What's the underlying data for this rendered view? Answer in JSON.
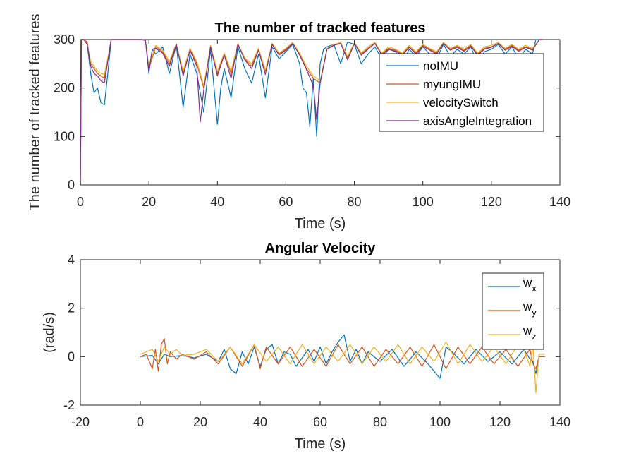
{
  "chart_data": [
    {
      "type": "line",
      "title": "The number of tracked features",
      "xlabel": "Time (s)",
      "ylabel": "The number of tracked features",
      "xlim": [
        0,
        140
      ],
      "ylim": [
        0,
        300
      ],
      "xticks": [
        "0",
        "20",
        "40",
        "60",
        "80",
        "100",
        "120",
        "140"
      ],
      "yticks": [
        "0",
        "100",
        "200",
        "300"
      ],
      "grid": false,
      "legend_position": "top-right",
      "series": [
        {
          "name": "noIMU",
          "color": "#0072BD",
          "x": [
            0,
            0.3,
            1,
            2,
            3,
            4,
            5,
            6,
            7,
            8,
            9,
            10,
            12,
            14,
            16,
            18,
            19,
            20,
            21,
            22,
            24,
            26,
            28,
            30,
            32,
            34,
            36,
            38,
            40,
            41,
            42,
            44,
            46,
            48,
            50,
            52,
            54,
            56,
            58,
            60,
            62,
            64,
            65,
            66,
            67,
            68,
            69,
            70,
            71,
            72,
            74,
            76,
            78,
            80,
            82,
            84,
            86,
            88,
            90,
            92,
            94,
            96,
            98,
            100,
            102,
            104,
            106,
            108,
            110,
            112,
            114,
            116,
            118,
            120,
            122,
            124,
            126,
            128,
            130,
            132,
            133,
            134,
            135
          ],
          "y": [
            0,
            300,
            300,
            290,
            230,
            190,
            200,
            170,
            165,
            230,
            300,
            300,
            300,
            300,
            300,
            300,
            298,
            230,
            280,
            270,
            285,
            230,
            290,
            160,
            270,
            230,
            150,
            280,
            125,
            200,
            240,
            180,
            285,
            240,
            210,
            270,
            180,
            285,
            260,
            275,
            290,
            250,
            200,
            190,
            120,
            220,
            100,
            250,
            280,
            285,
            290,
            250,
            295,
            290,
            250,
            270,
            285,
            260,
            280,
            275,
            250,
            280,
            265,
            285,
            270,
            260,
            290,
            265,
            280,
            270,
            285,
            250,
            275,
            280,
            290,
            270,
            285,
            260,
            280,
            270,
            300,
            300,
            300
          ]
        },
        {
          "name": "myungIMU",
          "color": "#D95319",
          "x": [
            0,
            0.3,
            1,
            2,
            3,
            4,
            5,
            6,
            7,
            8,
            9,
            10,
            14,
            18,
            19,
            20,
            22,
            24,
            26,
            28,
            30,
            32,
            34,
            36,
            38,
            40,
            42,
            44,
            46,
            48,
            50,
            52,
            54,
            56,
            58,
            60,
            62,
            64,
            66,
            68,
            70,
            72,
            74,
            76,
            78,
            80,
            82,
            84,
            86,
            88,
            90,
            92,
            94,
            96,
            98,
            100,
            102,
            104,
            106,
            108,
            110,
            112,
            114,
            116,
            118,
            120,
            122,
            124,
            126,
            128,
            130,
            132,
            134,
            135
          ],
          "y": [
            0,
            300,
            300,
            295,
            250,
            240,
            230,
            225,
            220,
            260,
            300,
            300,
            300,
            300,
            298,
            240,
            285,
            275,
            250,
            290,
            230,
            280,
            250,
            200,
            285,
            230,
            270,
            230,
            290,
            260,
            245,
            280,
            235,
            290,
            270,
            280,
            292,
            270,
            240,
            220,
            210,
            280,
            288,
            292,
            262,
            292,
            270,
            282,
            292,
            270,
            282,
            278,
            270,
            285,
            272,
            288,
            280,
            272,
            292,
            280,
            286,
            278,
            288,
            270,
            282,
            285,
            292,
            280,
            288,
            278,
            285,
            280,
            300,
            300
          ]
        },
        {
          "name": "velocitySwitch",
          "color": "#EDB120",
          "x": [
            0,
            0.3,
            1,
            2,
            3,
            4,
            5,
            6,
            7,
            8,
            9,
            10,
            14,
            18,
            19,
            20,
            22,
            24,
            26,
            28,
            30,
            32,
            34,
            36,
            38,
            40,
            42,
            44,
            46,
            48,
            50,
            52,
            54,
            56,
            58,
            60,
            62,
            64,
            66,
            68,
            70,
            72,
            74,
            76,
            78,
            80,
            82,
            84,
            86,
            88,
            90,
            92,
            94,
            96,
            98,
            100,
            102,
            104,
            106,
            108,
            110,
            112,
            114,
            116,
            118,
            120,
            122,
            124,
            126,
            128,
            130,
            132,
            134,
            135
          ],
          "y": [
            0,
            300,
            300,
            292,
            255,
            245,
            235,
            230,
            228,
            262,
            300,
            300,
            300,
            300,
            298,
            245,
            288,
            278,
            255,
            292,
            235,
            282,
            255,
            205,
            288,
            235,
            272,
            235,
            292,
            262,
            250,
            282,
            238,
            292,
            272,
            282,
            294,
            272,
            245,
            225,
            215,
            282,
            290,
            294,
            265,
            294,
            272,
            285,
            294,
            272,
            285,
            280,
            272,
            288,
            275,
            290,
            282,
            275,
            294,
            282,
            288,
            280,
            290,
            272,
            285,
            288,
            294,
            282,
            290,
            280,
            288,
            282,
            300,
            300
          ]
        },
        {
          "name": "axisAngleIntegration",
          "color": "#7E2F8E",
          "x": [
            0,
            0.3,
            1,
            2,
            3,
            4,
            5,
            6,
            7,
            8,
            9,
            10,
            14,
            18,
            19,
            20,
            21,
            22,
            24,
            26,
            28,
            30,
            32,
            34,
            35,
            36,
            38,
            40,
            42,
            44,
            46,
            48,
            50,
            52,
            54,
            56,
            58,
            60,
            62,
            64,
            66,
            68,
            69,
            70,
            72,
            74,
            76,
            78,
            80,
            82,
            84,
            86,
            88,
            90,
            92,
            94,
            96,
            98,
            100,
            102,
            104,
            106,
            108,
            110,
            112,
            114,
            116,
            118,
            120,
            122,
            124,
            126,
            128,
            130,
            132,
            134,
            135
          ],
          "y": [
            0,
            300,
            300,
            290,
            245,
            230,
            225,
            215,
            210,
            255,
            300,
            300,
            300,
            300,
            298,
            235,
            280,
            282,
            272,
            245,
            290,
            225,
            278,
            245,
            130,
            195,
            285,
            225,
            268,
            220,
            290,
            258,
            240,
            278,
            228,
            290,
            268,
            278,
            292,
            268,
            238,
            205,
            135,
            210,
            280,
            288,
            292,
            258,
            292,
            268,
            280,
            292,
            268,
            280,
            276,
            268,
            284,
            270,
            286,
            278,
            270,
            292,
            278,
            284,
            276,
            286,
            268,
            280,
            284,
            292,
            278,
            286,
            276,
            284,
            278,
            300,
            300
          ]
        }
      ]
    },
    {
      "type": "line",
      "title": "Angular Velocity",
      "xlabel": "Time (s)",
      "ylabel": "(rad/s)",
      "xlim": [
        -20,
        140
      ],
      "ylim": [
        -2,
        4
      ],
      "xticks": [
        "-20",
        "0",
        "20",
        "40",
        "60",
        "80",
        "100",
        "120",
        "140"
      ],
      "yticks": [
        "-2",
        "0",
        "2",
        "4"
      ],
      "grid": false,
      "legend_position": "top-right",
      "series": [
        {
          "name": "w_x",
          "color": "#0072BD",
          "x": [
            0,
            4,
            6,
            8,
            10,
            14,
            18,
            22,
            26,
            28,
            30,
            32,
            34,
            36,
            38,
            40,
            42,
            44,
            46,
            48,
            50,
            52,
            56,
            58,
            60,
            62,
            64,
            66,
            68,
            70,
            72,
            74,
            76,
            80,
            84,
            88,
            92,
            96,
            98,
            100,
            102,
            104,
            108,
            112,
            116,
            120,
            124,
            128,
            130,
            131,
            132,
            133,
            135
          ],
          "y": [
            0,
            0.05,
            -0.3,
            0.1,
            0,
            0.05,
            -0.05,
            0.1,
            -0.2,
            0.3,
            -0.5,
            -0.7,
            0.2,
            -0.3,
            0.4,
            -0.4,
            0.3,
            0.5,
            -0.3,
            0.2,
            0.1,
            -0.4,
            0.3,
            -0.2,
            0.4,
            -0.3,
            0.2,
            0.6,
            0.9,
            -0.2,
            0.3,
            -0.3,
            0.2,
            -0.2,
            0.3,
            -0.4,
            0.2,
            -0.3,
            -0.6,
            -0.9,
            0.4,
            0.2,
            -0.3,
            0.3,
            -0.2,
            0.2,
            -0.3,
            0.3,
            -0.1,
            -0.2,
            -0.7,
            0,
            0
          ]
        },
        {
          "name": "w_y",
          "color": "#D95319",
          "x": [
            0,
            2,
            4,
            5,
            6,
            7,
            8,
            9,
            10,
            12,
            14,
            18,
            22,
            26,
            30,
            34,
            38,
            40,
            42,
            46,
            50,
            54,
            58,
            62,
            66,
            70,
            74,
            78,
            82,
            86,
            90,
            94,
            98,
            102,
            106,
            110,
            114,
            118,
            122,
            126,
            130,
            131,
            132,
            133,
            135
          ],
          "y": [
            0,
            0.1,
            -0.5,
            0.3,
            -0.6,
            0.5,
            0.75,
            -0.3,
            0.2,
            -0.1,
            0.1,
            -0.1,
            0.2,
            -0.3,
            0.4,
            -0.4,
            0.5,
            -0.5,
            0.4,
            -0.3,
            0.4,
            -0.4,
            0.3,
            -0.4,
            0.5,
            -0.3,
            0.4,
            -0.4,
            0.3,
            -0.3,
            0.4,
            -0.4,
            0.5,
            -0.5,
            0.4,
            -0.3,
            0.4,
            -0.3,
            0.3,
            -0.4,
            0.3,
            -0.3,
            -0.5,
            0,
            0
          ]
        },
        {
          "name": "w_z",
          "color": "#EDB120",
          "x": [
            0,
            2,
            4,
            6,
            8,
            10,
            12,
            14,
            18,
            22,
            26,
            30,
            34,
            38,
            42,
            46,
            50,
            54,
            58,
            62,
            66,
            70,
            74,
            78,
            82,
            86,
            90,
            94,
            98,
            102,
            106,
            110,
            114,
            118,
            122,
            126,
            128,
            130,
            131,
            132,
            133,
            135
          ],
          "y": [
            0.1,
            0.2,
            0.3,
            -0.2,
            0.4,
            0.1,
            0.3,
            0.05,
            0.1,
            0.3,
            -0.2,
            0.4,
            -0.3,
            0.5,
            -0.2,
            0.4,
            -0.3,
            0.5,
            -0.3,
            0.4,
            -0.2,
            0.5,
            -0.3,
            0.4,
            -0.2,
            0.5,
            -0.3,
            0.4,
            -0.2,
            0.6,
            -0.3,
            0.5,
            -0.2,
            0.4,
            -0.3,
            0.5,
            0.3,
            -0.4,
            0.5,
            -1.5,
            0.1,
            0.1
          ]
        }
      ]
    }
  ]
}
